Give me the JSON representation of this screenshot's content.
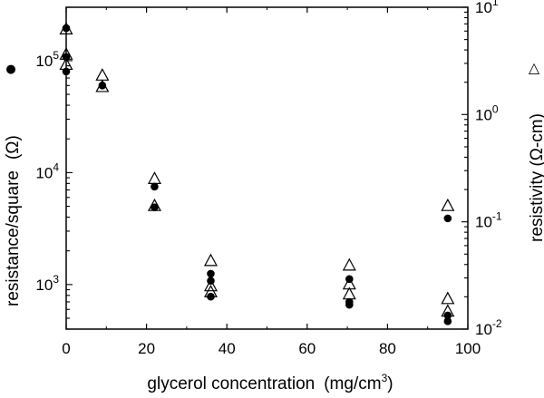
{
  "chart_data": {
    "type": "scatter",
    "xlabel": "glycerol concentration",
    "xlabel_unit_prefix": "(mg/cm",
    "xlabel_unit_sup": "3",
    "xlabel_unit_suffix": ")",
    "ylabel_left": "resistance/square",
    "ylabel_left_unit": "(Ω)",
    "ylabel_right": "resistivity (Ω-cm)",
    "left_marker": "●",
    "right_marker": "△",
    "xlim": [
      0,
      100
    ],
    "ylim_left": [
      400,
      300000
    ],
    "ylim_right": [
      0.01,
      10
    ],
    "yscale": "log",
    "grid": false,
    "x_ticks": [
      "0",
      "20",
      "40",
      "60",
      "80",
      "100"
    ],
    "y_left_ticks": [
      {
        "value": 1000,
        "base": "10",
        "exp": "3"
      },
      {
        "value": 10000,
        "base": "10",
        "exp": "4"
      },
      {
        "value": 100000,
        "base": "10",
        "exp": "5"
      }
    ],
    "y_right_ticks": [
      {
        "value": 0.01,
        "base": "10",
        "exp": "-2"
      },
      {
        "value": 0.1,
        "base": "10",
        "exp": "-1"
      },
      {
        "value": 1,
        "base": "10",
        "exp": "0"
      },
      {
        "value": 10,
        "base": "10",
        "exp": "1"
      }
    ],
    "series": [
      {
        "axis": "left",
        "marker": "filled-circle",
        "points": [
          {
            "x": 0,
            "y": 195000
          },
          {
            "x": 0,
            "y": 108000
          },
          {
            "x": 0,
            "y": 80000
          },
          {
            "x": 9,
            "y": 60000
          },
          {
            "x": 22,
            "y": 7500
          },
          {
            "x": 22,
            "y": 4900
          },
          {
            "x": 36,
            "y": 1250
          },
          {
            "x": 36,
            "y": 1080
          },
          {
            "x": 36,
            "y": 780
          },
          {
            "x": 70.5,
            "y": 1120
          },
          {
            "x": 70.5,
            "y": 700
          },
          {
            "x": 70.5,
            "y": 660
          },
          {
            "x": 95,
            "y": 3900
          },
          {
            "x": 95,
            "y": 530
          },
          {
            "x": 95,
            "y": 470
          }
        ]
      },
      {
        "axis": "right",
        "marker": "open-triangle",
        "points": [
          {
            "x": 0,
            "y": 6.2
          },
          {
            "x": 0,
            "y": 3.6
          },
          {
            "x": 0,
            "y": 2.9
          },
          {
            "x": 9,
            "y": 2.3
          },
          {
            "x": 9,
            "y": 1.8
          },
          {
            "x": 22,
            "y": 0.25
          },
          {
            "x": 22,
            "y": 0.14
          },
          {
            "x": 36,
            "y": 0.043
          },
          {
            "x": 36,
            "y": 0.025
          },
          {
            "x": 36,
            "y": 0.022
          },
          {
            "x": 70.5,
            "y": 0.039
          },
          {
            "x": 70.5,
            "y": 0.026
          },
          {
            "x": 70.5,
            "y": 0.021
          },
          {
            "x": 95,
            "y": 0.14
          },
          {
            "x": 95,
            "y": 0.019
          },
          {
            "x": 95,
            "y": 0.0145
          }
        ]
      }
    ]
  }
}
